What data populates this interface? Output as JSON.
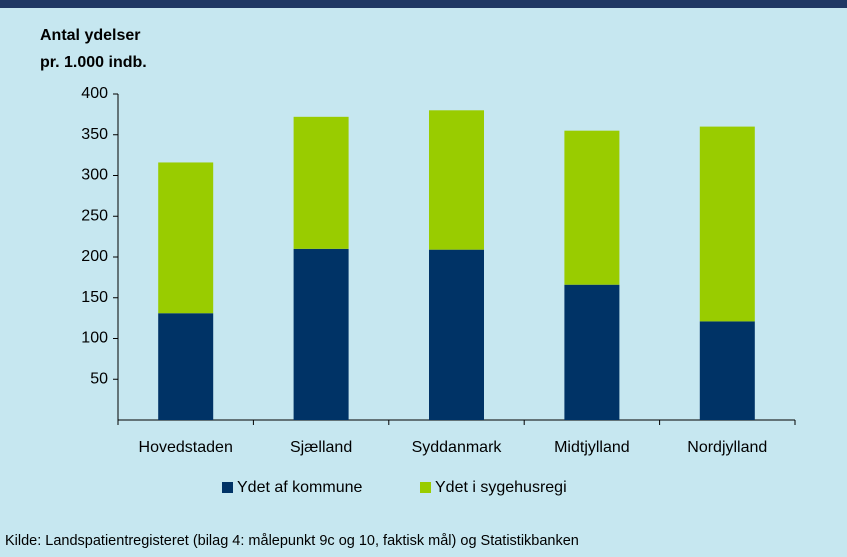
{
  "chart_data": {
    "type": "stacked_bar",
    "y_label": [
      "Antal ydelser",
      "pr. 1.000 indb."
    ],
    "categories": [
      "Hovedstaden",
      "Sjælland",
      "Syddanmark",
      "Midtjylland",
      "Nordjylland"
    ],
    "series": [
      {
        "name": "Ydet af kommune",
        "color": "#003366",
        "values": [
          131,
          210,
          209,
          166,
          121
        ]
      },
      {
        "name": "Ydet i sygehusregi",
        "color": "#99cc00",
        "values": [
          185,
          162,
          171,
          189,
          239
        ]
      }
    ],
    "ylim": [
      0,
      400
    ],
    "yticks": [
      50,
      100,
      150,
      200,
      250,
      300,
      350,
      400
    ],
    "source": "Kilde: Landspatientregisteret (bilag 4: målepunkt 9c og 10, faktisk mål) og Statistikbanken"
  }
}
